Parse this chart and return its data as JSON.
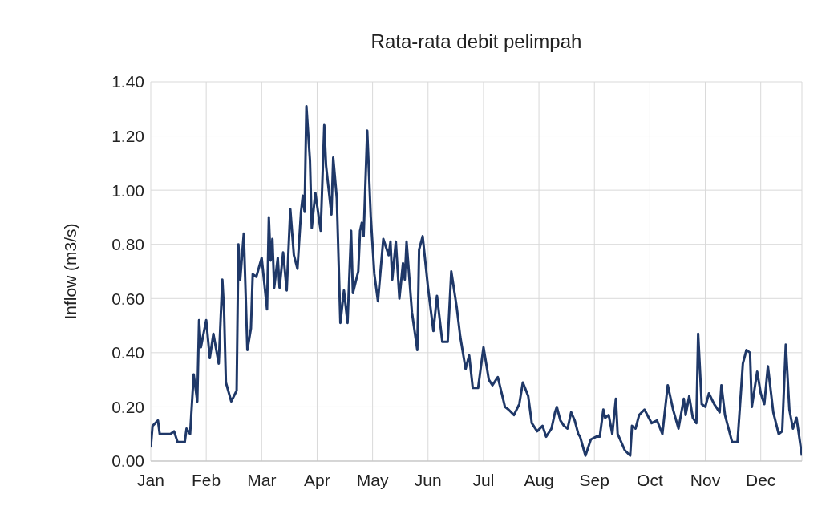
{
  "chart_data": {
    "type": "line",
    "title": "Rata-rata debit pelimpah",
    "ylabel": "Inflow (m3/s)",
    "x": [
      "--01-01",
      "--01-02",
      "--01-05",
      "--01-06",
      "--01-12",
      "--01-14",
      "--01-16",
      "--01-20",
      "--01-21",
      "--01-23",
      "--01-25",
      "--01-27",
      "--01-28",
      "--01-29",
      "--02-01",
      "--02-03",
      "--02-05",
      "--02-08",
      "--02-10",
      "--02-11",
      "--02-12",
      "--02-15",
      "--02-18",
      "--02-19",
      "--02-20",
      "--02-22",
      "--02-24",
      "--02-26",
      "--02-27",
      "--03-01",
      "--03-04",
      "--03-07",
      "--03-08",
      "--03-09",
      "--03-10",
      "--03-11",
      "--03-13",
      "--03-14",
      "--03-16",
      "--03-18",
      "--03-20",
      "--03-22",
      "--03-24",
      "--03-26",
      "--03-27",
      "--03-28",
      "--03-29",
      "--03-31",
      "--04-01",
      "--04-03",
      "--04-06",
      "--04-08",
      "--04-09",
      "--04-12",
      "--04-13",
      "--04-15",
      "--04-17",
      "--04-19",
      "--04-21",
      "--04-23",
      "--04-24",
      "--04-27",
      "--04-28",
      "--04-29",
      "--04-30",
      "--05-02",
      "--05-04",
      "--05-06",
      "--05-08",
      "--05-11",
      "--05-14",
      "--05-15",
      "--05-16",
      "--05-18",
      "--05-20",
      "--05-22",
      "--05-23",
      "--05-24",
      "--05-27",
      "--05-30",
      "--05-31",
      "--06-02",
      "--06-05",
      "--06-08",
      "--06-10",
      "--06-13",
      "--06-16",
      "--06-18",
      "--06-21",
      "--06-23",
      "--06-26",
      "--06-28",
      "--06-30",
      "--07-03",
      "--07-06",
      "--07-09",
      "--07-11",
      "--07-14",
      "--07-18",
      "--07-20",
      "--07-23",
      "--07-26",
      "--07-28",
      "--07-31",
      "--08-02",
      "--08-05",
      "--08-08",
      "--08-10",
      "--08-13",
      "--08-15",
      "--08-16",
      "--08-18",
      "--08-20",
      "--08-22",
      "--08-24",
      "--08-26",
      "--08-28",
      "--08-29",
      "--09-01",
      "--09-04",
      "--09-07",
      "--09-09",
      "--09-11",
      "--09-12",
      "--09-14",
      "--09-16",
      "--09-18",
      "--09-19",
      "--09-23",
      "--09-26",
      "--09-27",
      "--09-29",
      "--10-01",
      "--10-04",
      "--10-08",
      "--10-11",
      "--10-14",
      "--10-17",
      "--10-20",
      "--10-23",
      "--10-26",
      "--10-27",
      "--10-29",
      "--10-31",
      "--11-02",
      "--11-03",
      "--11-05",
      "--11-07",
      "--11-09",
      "--11-12",
      "--11-15",
      "--11-16",
      "--11-18",
      "--11-22",
      "--11-25",
      "--11-28",
      "--11-30",
      "--12-02",
      "--12-03",
      "--12-06",
      "--12-08",
      "--12-10",
      "--12-12",
      "--12-15",
      "--12-18",
      "--12-20",
      "--12-22",
      "--12-24",
      "--12-26",
      "--12-28",
      "--12-31"
    ],
    "series": [
      {
        "color": "#1f3868",
        "values": [
          0.05,
          0.13,
          0.15,
          0.1,
          0.1,
          0.11,
          0.07,
          0.07,
          0.12,
          0.1,
          0.32,
          0.22,
          0.52,
          0.42,
          0.52,
          0.38,
          0.47,
          0.36,
          0.67,
          0.55,
          0.29,
          0.22,
          0.26,
          0.8,
          0.67,
          0.84,
          0.41,
          0.49,
          0.69,
          0.68,
          0.75,
          0.56,
          0.9,
          0.74,
          0.82,
          0.64,
          0.75,
          0.64,
          0.77,
          0.63,
          0.93,
          0.76,
          0.71,
          0.92,
          0.98,
          0.92,
          1.31,
          1.11,
          0.86,
          0.99,
          0.85,
          1.24,
          1.09,
          0.91,
          1.12,
          0.97,
          0.51,
          0.63,
          0.51,
          0.85,
          0.62,
          0.7,
          0.85,
          0.88,
          0.83,
          1.22,
          0.9,
          0.69,
          0.59,
          0.82,
          0.76,
          0.81,
          0.67,
          0.81,
          0.6,
          0.73,
          0.67,
          0.81,
          0.55,
          0.41,
          0.78,
          0.83,
          0.64,
          0.48,
          0.61,
          0.44,
          0.44,
          0.7,
          0.57,
          0.46,
          0.34,
          0.39,
          0.27,
          0.27,
          0.42,
          0.3,
          0.28,
          0.31,
          0.2,
          0.19,
          0.17,
          0.21,
          0.29,
          0.24,
          0.14,
          0.11,
          0.13,
          0.09,
          0.12,
          0.18,
          0.2,
          0.15,
          0.13,
          0.12,
          0.18,
          0.15,
          0.1,
          0.09,
          0.02,
          0.08,
          0.09,
          0.09,
          0.19,
          0.16,
          0.17,
          0.1,
          0.23,
          0.1,
          0.04,
          0.02,
          0.13,
          0.12,
          0.17,
          0.19,
          0.14,
          0.15,
          0.1,
          0.28,
          0.19,
          0.12,
          0.23,
          0.17,
          0.24,
          0.16,
          0.14,
          0.47,
          0.21,
          0.2,
          0.25,
          0.21,
          0.18,
          0.28,
          0.17,
          0.07,
          0.07,
          0.36,
          0.41,
          0.4,
          0.2,
          0.33,
          0.25,
          0.21,
          0.35,
          0.18,
          0.1,
          0.11,
          0.43,
          0.19,
          0.12,
          0.16,
          0.02
        ]
      }
    ],
    "xlim": [
      "--01-01",
      "--12-31"
    ],
    "xticks": [
      {
        "value": "--01-01",
        "label": "Jan"
      },
      {
        "value": "--02-01",
        "label": "Feb"
      },
      {
        "value": "--03-04",
        "label": "Mar"
      },
      {
        "value": "--04-04",
        "label": "Apr"
      },
      {
        "value": "--05-05",
        "label": "May"
      },
      {
        "value": "--06-05",
        "label": "Jun"
      },
      {
        "value": "--07-06",
        "label": "Jul"
      },
      {
        "value": "--08-06",
        "label": "Aug"
      },
      {
        "value": "--09-06",
        "label": "Sep"
      },
      {
        "value": "--10-07",
        "label": "Oct"
      },
      {
        "value": "--11-07",
        "label": "Nov"
      },
      {
        "value": "--12-08",
        "label": "Dec"
      }
    ],
    "ylim": [
      0,
      1.4
    ],
    "yticks": [
      {
        "value": 0,
        "label": "0.00"
      },
      {
        "value": 0.2,
        "label": "0.20"
      },
      {
        "value": 0.4,
        "label": "0.40"
      },
      {
        "value": 0.6,
        "label": "0.60"
      },
      {
        "value": 0.8,
        "label": "0.80"
      },
      {
        "value": 1.0,
        "label": "1.00"
      },
      {
        "value": 1.2,
        "label": "1.20"
      },
      {
        "value": 1.4,
        "label": "1.40"
      }
    ],
    "grid": true,
    "marker": "none",
    "line_style": "solid"
  }
}
